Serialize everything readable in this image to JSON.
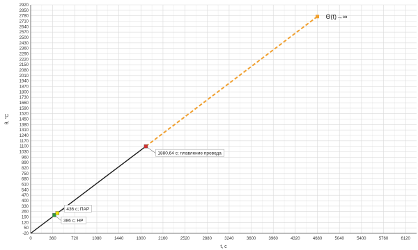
{
  "chart_data": {
    "type": "line",
    "xlabel": "t, c",
    "ylabel": "θ, °C",
    "xlim": [
      0,
      6300
    ],
    "ylim": [
      -20,
      2920
    ],
    "x_ticks": [
      0,
      360,
      720,
      1080,
      1440,
      1800,
      2160,
      2520,
      2880,
      3240,
      3600,
      3960,
      4320,
      4680,
      5040,
      5400,
      5760,
      6120
    ],
    "y_ticks": [
      -20,
      50,
      120,
      190,
      260,
      330,
      400,
      470,
      540,
      610,
      680,
      750,
      820,
      890,
      960,
      1030,
      1100,
      1170,
      1240,
      1310,
      1380,
      1450,
      1520,
      1590,
      1660,
      1730,
      1800,
      1870,
      1940,
      2010,
      2080,
      2150,
      2220,
      2290,
      2360,
      2430,
      2500,
      2570,
      2640,
      2710,
      2780,
      2850,
      2920
    ],
    "grid": true,
    "series": [
      {
        "style": "solid",
        "color": "#1a1a1a",
        "points": [
          [
            0,
            -20
          ],
          [
            1880.64,
            1100
          ]
        ]
      },
      {
        "style": "dashed",
        "color": "#f0a030",
        "points": [
          [
            1880.64,
            1100
          ],
          [
            4680,
            2770
          ]
        ]
      }
    ],
    "markers": [
      {
        "x": 386,
        "y": 215,
        "color": "#2e9a3e",
        "label": "386 c; НР"
      },
      {
        "x": 436,
        "y": 240,
        "color": "#f2e600",
        "label": "436 c; ПАР"
      },
      {
        "x": 1880.64,
        "y": 1100,
        "color": "#d03030",
        "label": "1880,64 c; плавление провода"
      }
    ],
    "end_marker": {
      "x": 4680,
      "y": 2770,
      "color": "#f0a030"
    },
    "annotation": "Θ(t)→∞"
  },
  "colors": {
    "grid": "#d9d9d9",
    "axis": "#555555"
  }
}
